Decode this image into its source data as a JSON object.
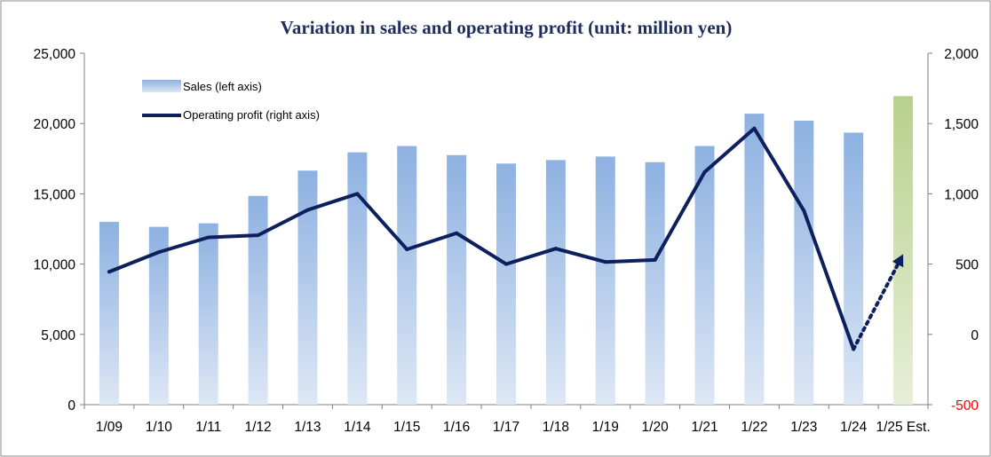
{
  "chart_data": {
    "type": "bar+line",
    "title": "Variation in sales and operating profit (unit: million yen)",
    "categories": [
      "1/09",
      "1/10",
      "1/11",
      "1/12",
      "1/13",
      "1/14",
      "1/15",
      "1/16",
      "1/17",
      "1/18",
      "1/19",
      "1/20",
      "1/21",
      "1/22",
      "1/23",
      "1/24",
      "1/25 Est."
    ],
    "series": [
      {
        "name": "Sales (left axis)",
        "type": "bar",
        "axis": "left",
        "values": [
          13000,
          12650,
          12900,
          14850,
          16650,
          17950,
          18400,
          17750,
          17150,
          17400,
          17650,
          17250,
          18400,
          20700,
          20200,
          19350,
          21950
        ],
        "color": "#8fb2e0",
        "estimate_color": "#b9d18e"
      },
      {
        "name": "Operating profit (right axis)",
        "type": "line",
        "axis": "right",
        "values": [
          445,
          585,
          690,
          705,
          885,
          1000,
          605,
          720,
          500,
          610,
          515,
          530,
          1155,
          1465,
          880,
          -105,
          null
        ],
        "estimate": {
          "from": "1/24",
          "to": "1/25 Est.",
          "value": 570,
          "style": "dotted-arrow"
        },
        "color": "#0d1f5c"
      }
    ],
    "left_axis": {
      "min": 0,
      "max": 25000,
      "ticks": [
        "0",
        "5,000",
        "10,000",
        "15,000",
        "20,000",
        "25,000"
      ]
    },
    "right_axis": {
      "min": -500,
      "max": 2000,
      "ticks": [
        "-500",
        "0",
        "500",
        "1,000",
        "1,500",
        "2,000"
      ],
      "negative_color": "#ff0000"
    },
    "grid": false,
    "legend": "top-left"
  }
}
